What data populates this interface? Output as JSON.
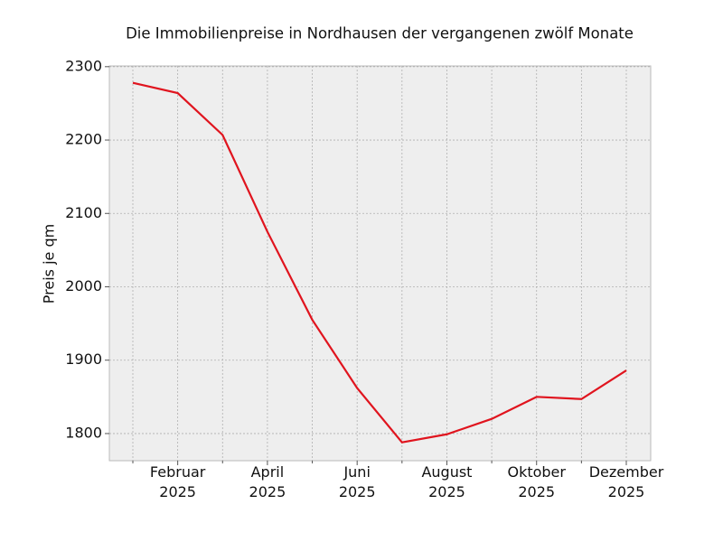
{
  "chart_data": {
    "type": "line",
    "title": "Die Immobilienpreise in Nordhausen der vergangenen zwölf Monate",
    "y_label": "Preis je qm",
    "categories": [
      null,
      "Februar\n2025",
      null,
      "April\n2025",
      null,
      "Juni\n2025",
      null,
      "August\n2025",
      null,
      "Oktober\n2025",
      null,
      "Dezember\n2025"
    ],
    "series": [
      {
        "color": "#e0141e",
        "values": [
          2278,
          2264,
          2207,
          2075,
          1955,
          1862,
          1788,
          1799,
          1820,
          1850,
          1847,
          1886
        ]
      }
    ],
    "ylim": [
      1763,
      2301
    ],
    "yticks": [
      1800,
      1900,
      2000,
      2100,
      2200,
      2300
    ],
    "grid": true
  }
}
